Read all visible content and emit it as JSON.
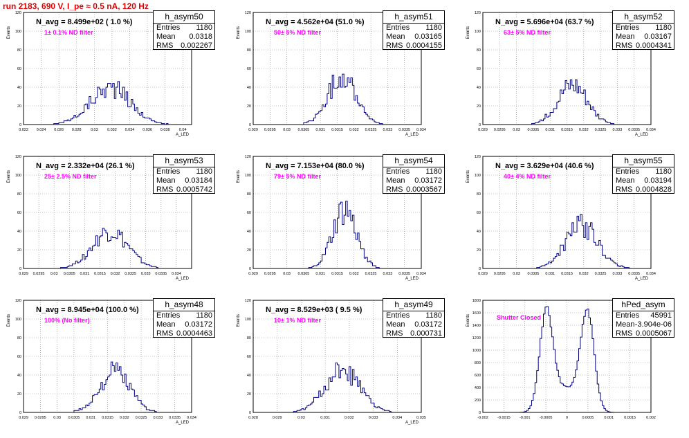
{
  "run_title": "run 2183,   690 V, I_pe ≈ 0.5 nA, 120 Hz",
  "colors": {
    "title": "#e00000",
    "filter_label": "#ff00ff",
    "histogram": "#00007f",
    "grid": "#888888"
  },
  "chart_data": [
    {
      "type": "histogram",
      "name": "h_asym50",
      "navg": "N_avg = 8.499e+02 ( 1.0 %)",
      "filter": "1± 0.1% ND filter",
      "stats": [
        [
          "Entries",
          "1180"
        ],
        [
          "Mean",
          "0.0318"
        ],
        [
          "RMS",
          "0.002267"
        ]
      ],
      "ylabel": "Events",
      "xlabel": "A_LED",
      "xlim": [
        0.022,
        0.041
      ],
      "ylim": [
        0,
        120
      ],
      "xticks": [
        "0.022",
        "0.024",
        "0.026",
        "0.028",
        "0.03",
        "0.032",
        "0.034",
        "0.036",
        "0.038",
        "0.04"
      ],
      "yticks": [
        "0",
        "20",
        "40",
        "60",
        "80",
        "100",
        "120"
      ],
      "mean": 0.0318,
      "rms": 0.002267,
      "peak": 50
    },
    {
      "type": "histogram",
      "name": "h_asym51",
      "navg": "N_avg = 4.562e+04 (51.0 %)",
      "filter": "50± 5% ND filter",
      "stats": [
        [
          "Entries",
          "1180"
        ],
        [
          "Mean",
          "0.03165"
        ],
        [
          "RMS",
          "0.0004155"
        ]
      ],
      "ylabel": "Events",
      "xlabel": "A_LED",
      "xlim": [
        0.029,
        0.034
      ],
      "ylim": [
        0,
        120
      ],
      "xticks": [
        "0.029",
        "0.0295",
        "0.03",
        "0.0305",
        "0.031",
        "0.0315",
        "0.032",
        "0.0325",
        "0.033",
        "0.0335",
        "0.034"
      ],
      "yticks": [
        "0",
        "20",
        "40",
        "60",
        "80",
        "100",
        "120"
      ],
      "mean": 0.03165,
      "rms": 0.0004155,
      "peak": 66
    },
    {
      "type": "histogram",
      "name": "h_asym52",
      "navg": "N_avg = 5.696e+04 (63.7 %)",
      "filter": "63± 5% ND filter",
      "stats": [
        [
          "Entries",
          "1180"
        ],
        [
          "Mean",
          "0.03167"
        ],
        [
          "RMS",
          "0.0004341"
        ]
      ],
      "ylabel": "Events",
      "xlabel": "A_LED",
      "xlim": [
        0.029,
        0.034
      ],
      "ylim": [
        0,
        120
      ],
      "xticks": [
        "0.029",
        "0.0295",
        "0.03",
        "0.0305",
        "0.031",
        "0.0315",
        "0.032",
        "0.0325",
        "0.033",
        "0.0335",
        "0.034"
      ],
      "yticks": [
        "0",
        "20",
        "40",
        "60",
        "80",
        "100",
        "120"
      ],
      "mean": 0.03167,
      "rms": 0.0004341,
      "peak": 56
    },
    {
      "type": "histogram",
      "name": "h_asym53",
      "navg": "N_avg = 2.332e+04 (26.1 %)",
      "filter": "25± 2.5% ND filter",
      "stats": [
        [
          "Entries",
          "1180"
        ],
        [
          "Mean",
          "0.03184"
        ],
        [
          "RMS",
          "0.0005742"
        ]
      ],
      "ylabel": "Events",
      "xlabel": "A_LED",
      "xlim": [
        0.029,
        0.0345
      ],
      "ylim": [
        0,
        120
      ],
      "xticks": [
        "0.029",
        "0.0295",
        "0.03",
        "0.0305",
        "0.031",
        "0.0315",
        "0.032",
        "0.0325",
        "0.033",
        "0.0335",
        "0.034"
      ],
      "yticks": [
        "0",
        "20",
        "40",
        "60",
        "80",
        "100",
        "120"
      ],
      "mean": 0.03184,
      "rms": 0.0005742,
      "peak": 50
    },
    {
      "type": "histogram",
      "name": "h_asym54",
      "navg": "N_avg = 7.153e+04 (80.0 %)",
      "filter": "79± 5% ND filter",
      "stats": [
        [
          "Entries",
          "1180"
        ],
        [
          "Mean",
          "0.03172"
        ],
        [
          "RMS",
          "0.0003567"
        ]
      ],
      "ylabel": "Events",
      "xlabel": "A_LED",
      "xlim": [
        0.029,
        0.034
      ],
      "ylim": [
        0,
        120
      ],
      "xticks": [
        "0.029",
        "0.0295",
        "0.03",
        "0.0305",
        "0.031",
        "0.0315",
        "0.032",
        "0.0325",
        "0.033",
        "0.0335",
        "0.034"
      ],
      "yticks": [
        "0",
        "20",
        "40",
        "60",
        "80",
        "100",
        "120"
      ],
      "mean": 0.03172,
      "rms": 0.0003567,
      "peak": 78
    },
    {
      "type": "histogram",
      "name": "h_asym55",
      "navg": "N_avg = 3.629e+04 (40.6 %)",
      "filter": "40± 4% ND filter",
      "stats": [
        [
          "Entries",
          "1180"
        ],
        [
          "Mean",
          "0.03194"
        ],
        [
          "RMS",
          "0.0004828"
        ]
      ],
      "ylabel": "Events",
      "xlabel": "A_LED",
      "xlim": [
        0.029,
        0.034
      ],
      "ylim": [
        0,
        120
      ],
      "xticks": [
        "0.029",
        "0.0295",
        "0.03",
        "0.0305",
        "0.031",
        "0.0315",
        "0.032",
        "0.0325",
        "0.033",
        "0.0335",
        "0.034"
      ],
      "yticks": [
        "0",
        "20",
        "40",
        "60",
        "80",
        "100",
        "120"
      ],
      "mean": 0.03194,
      "rms": 0.0004828,
      "peak": 57
    },
    {
      "type": "histogram",
      "name": "h_asym48",
      "navg": "N_avg = 8.945e+04 (100.0 %)",
      "filter": "100% (No filter)",
      "stats": [
        [
          "Entries",
          "1180"
        ],
        [
          "Mean",
          "0.03172"
        ],
        [
          "RMS",
          "0.0004463"
        ]
      ],
      "ylabel": "Events",
      "xlabel": "A_LED",
      "xlim": [
        0.029,
        0.034
      ],
      "ylim": [
        0,
        120
      ],
      "xticks": [
        "0.029",
        "0.0295",
        "0.03",
        "0.0305",
        "0.031",
        "0.0315",
        "0.032",
        "0.0325",
        "0.033",
        "0.0335",
        "0.034"
      ],
      "yticks": [
        "0",
        "20",
        "40",
        "60",
        "80",
        "100",
        "120"
      ],
      "mean": 0.03172,
      "rms": 0.0004463,
      "peak": 55
    },
    {
      "type": "histogram",
      "name": "h_asym49",
      "navg": "N_avg = 8.529e+03 ( 9.5 %)",
      "filter": "10± 1% ND filter",
      "stats": [
        [
          "Entries",
          "1180"
        ],
        [
          "Mean",
          "0.03172"
        ],
        [
          "RMS",
          "0.000731"
        ]
      ],
      "ylabel": "Events",
      "xlabel": "A_LED",
      "xlim": [
        0.028,
        0.035
      ],
      "ylim": [
        0,
        120
      ],
      "xticks": [
        "0.028",
        "0.029",
        "0.03",
        "0.031",
        "0.032",
        "0.033",
        "0.034",
        "0.035"
      ],
      "yticks": [
        "0",
        "20",
        "40",
        "60",
        "80",
        "100",
        "120"
      ],
      "mean": 0.03172,
      "rms": 0.000731,
      "peak": 55
    },
    {
      "type": "histogram",
      "name": "hPed_asym",
      "navg": "",
      "filter": "Shutter Closed",
      "stats": [
        [
          "Entries",
          "45991"
        ],
        [
          "Mean",
          "-3.904e-06"
        ],
        [
          "RMS",
          "0.0005067"
        ]
      ],
      "ylabel": "Events",
      "xlabel": "",
      "xlim": [
        -0.002,
        0.002
      ],
      "ylim": [
        0,
        1800
      ],
      "xticks": [
        "-0.002",
        "-0.0015",
        "-0.001",
        "-0.0005",
        "0",
        "0.0005",
        "0.001",
        "0.0015",
        "0.002"
      ],
      "yticks": [
        "0",
        "200",
        "400",
        "600",
        "800",
        "1000",
        "1200",
        "1400",
        "1600",
        "1800"
      ],
      "mean": -3.9e-06,
      "rms": 0.0005067,
      "peak": 1750,
      "bimodal": true
    }
  ]
}
